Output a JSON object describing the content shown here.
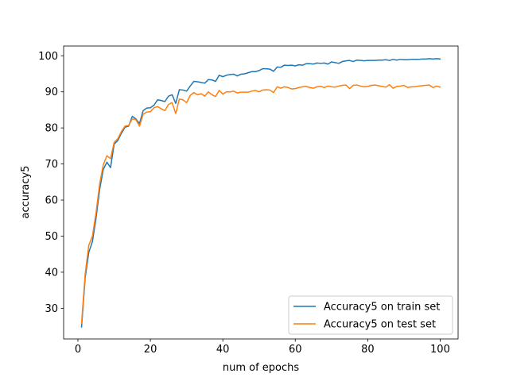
{
  "chart_data": {
    "type": "line",
    "title": "",
    "xlabel": "num of epochs",
    "ylabel": "accuracy5",
    "xlim": [
      -3.95,
      104.95
    ],
    "ylim": [
      21.5,
      102.7
    ],
    "xticks": [
      0,
      20,
      40,
      60,
      80,
      100
    ],
    "yticks": [
      30,
      40,
      50,
      60,
      70,
      80,
      90,
      100
    ],
    "grid": false,
    "legend_position": "lower-right",
    "x": [
      1,
      2,
      3,
      4,
      5,
      6,
      7,
      8,
      9,
      10,
      11,
      12,
      13,
      14,
      15,
      16,
      17,
      18,
      19,
      20,
      21,
      22,
      23,
      24,
      25,
      26,
      27,
      28,
      29,
      30,
      31,
      32,
      33,
      34,
      35,
      36,
      37,
      38,
      39,
      40,
      41,
      42,
      43,
      44,
      45,
      46,
      47,
      48,
      49,
      50,
      51,
      52,
      53,
      54,
      55,
      56,
      57,
      58,
      59,
      60,
      61,
      62,
      63,
      64,
      65,
      66,
      67,
      68,
      69,
      70,
      71,
      72,
      73,
      74,
      75,
      76,
      77,
      78,
      79,
      80,
      81,
      82,
      83,
      84,
      85,
      86,
      87,
      88,
      89,
      90,
      91,
      92,
      93,
      94,
      95,
      96,
      97,
      98,
      99,
      100
    ],
    "series": [
      {
        "name": "Accuracy5 on train set",
        "color": "#1f77b4",
        "values": [
          24.8,
          38.5,
          45.5,
          48.5,
          55.0,
          63.0,
          68.5,
          70.5,
          69.0,
          75.5,
          76.5,
          78.5,
          80.2,
          80.5,
          83.2,
          82.5,
          81.2,
          84.8,
          85.5,
          85.6,
          86.3,
          87.8,
          87.6,
          87.3,
          88.8,
          89.2,
          86.8,
          90.6,
          90.5,
          90.2,
          91.6,
          92.9,
          92.8,
          92.6,
          92.4,
          93.4,
          93.3,
          92.9,
          94.6,
          94.2,
          94.6,
          94.8,
          94.9,
          94.4,
          94.9,
          95.0,
          95.3,
          95.6,
          95.6,
          95.9,
          96.4,
          96.4,
          96.3,
          95.7,
          96.9,
          96.8,
          97.4,
          97.3,
          97.4,
          97.2,
          97.5,
          97.4,
          97.8,
          97.8,
          97.7,
          98.0,
          97.9,
          98.0,
          97.7,
          98.3,
          98.1,
          97.9,
          98.4,
          98.6,
          98.7,
          98.4,
          98.8,
          98.7,
          98.6,
          98.7,
          98.7,
          98.7,
          98.8,
          98.8,
          98.9,
          98.7,
          99.0,
          98.8,
          99.0,
          98.9,
          98.9,
          99.0,
          99.0,
          99.0,
          99.1,
          99.1,
          99.2,
          99.1,
          99.2,
          99.1
        ]
      },
      {
        "name": "Accuracy5 on test set",
        "color": "#ff7f0e",
        "values": [
          25.8,
          39.5,
          47.5,
          50.0,
          56.5,
          64.5,
          69.8,
          72.3,
          71.5,
          76.0,
          77.0,
          79.0,
          80.5,
          80.7,
          82.5,
          82.3,
          80.5,
          83.8,
          84.4,
          84.5,
          85.6,
          85.9,
          85.3,
          84.8,
          86.5,
          87.0,
          84.0,
          88.0,
          87.8,
          87.0,
          89.0,
          89.8,
          89.2,
          89.5,
          88.8,
          90.0,
          89.2,
          88.7,
          90.4,
          89.4,
          90.0,
          90.0,
          90.2,
          89.7,
          89.9,
          89.9,
          89.9,
          90.2,
          90.4,
          90.0,
          90.5,
          90.6,
          90.5,
          89.8,
          91.4,
          91.0,
          91.4,
          91.2,
          90.8,
          90.9,
          91.2,
          91.4,
          91.5,
          91.2,
          91.0,
          91.4,
          91.5,
          91.2,
          91.6,
          91.4,
          91.3,
          91.6,
          91.8,
          91.9,
          90.9,
          91.8,
          91.9,
          91.6,
          91.4,
          91.5,
          91.8,
          91.9,
          91.7,
          91.5,
          91.3,
          92.0,
          91.0,
          91.5,
          91.6,
          91.8,
          91.2,
          91.4,
          91.4,
          91.6,
          91.7,
          91.8,
          91.9,
          91.2,
          91.6,
          91.3
        ]
      }
    ]
  }
}
